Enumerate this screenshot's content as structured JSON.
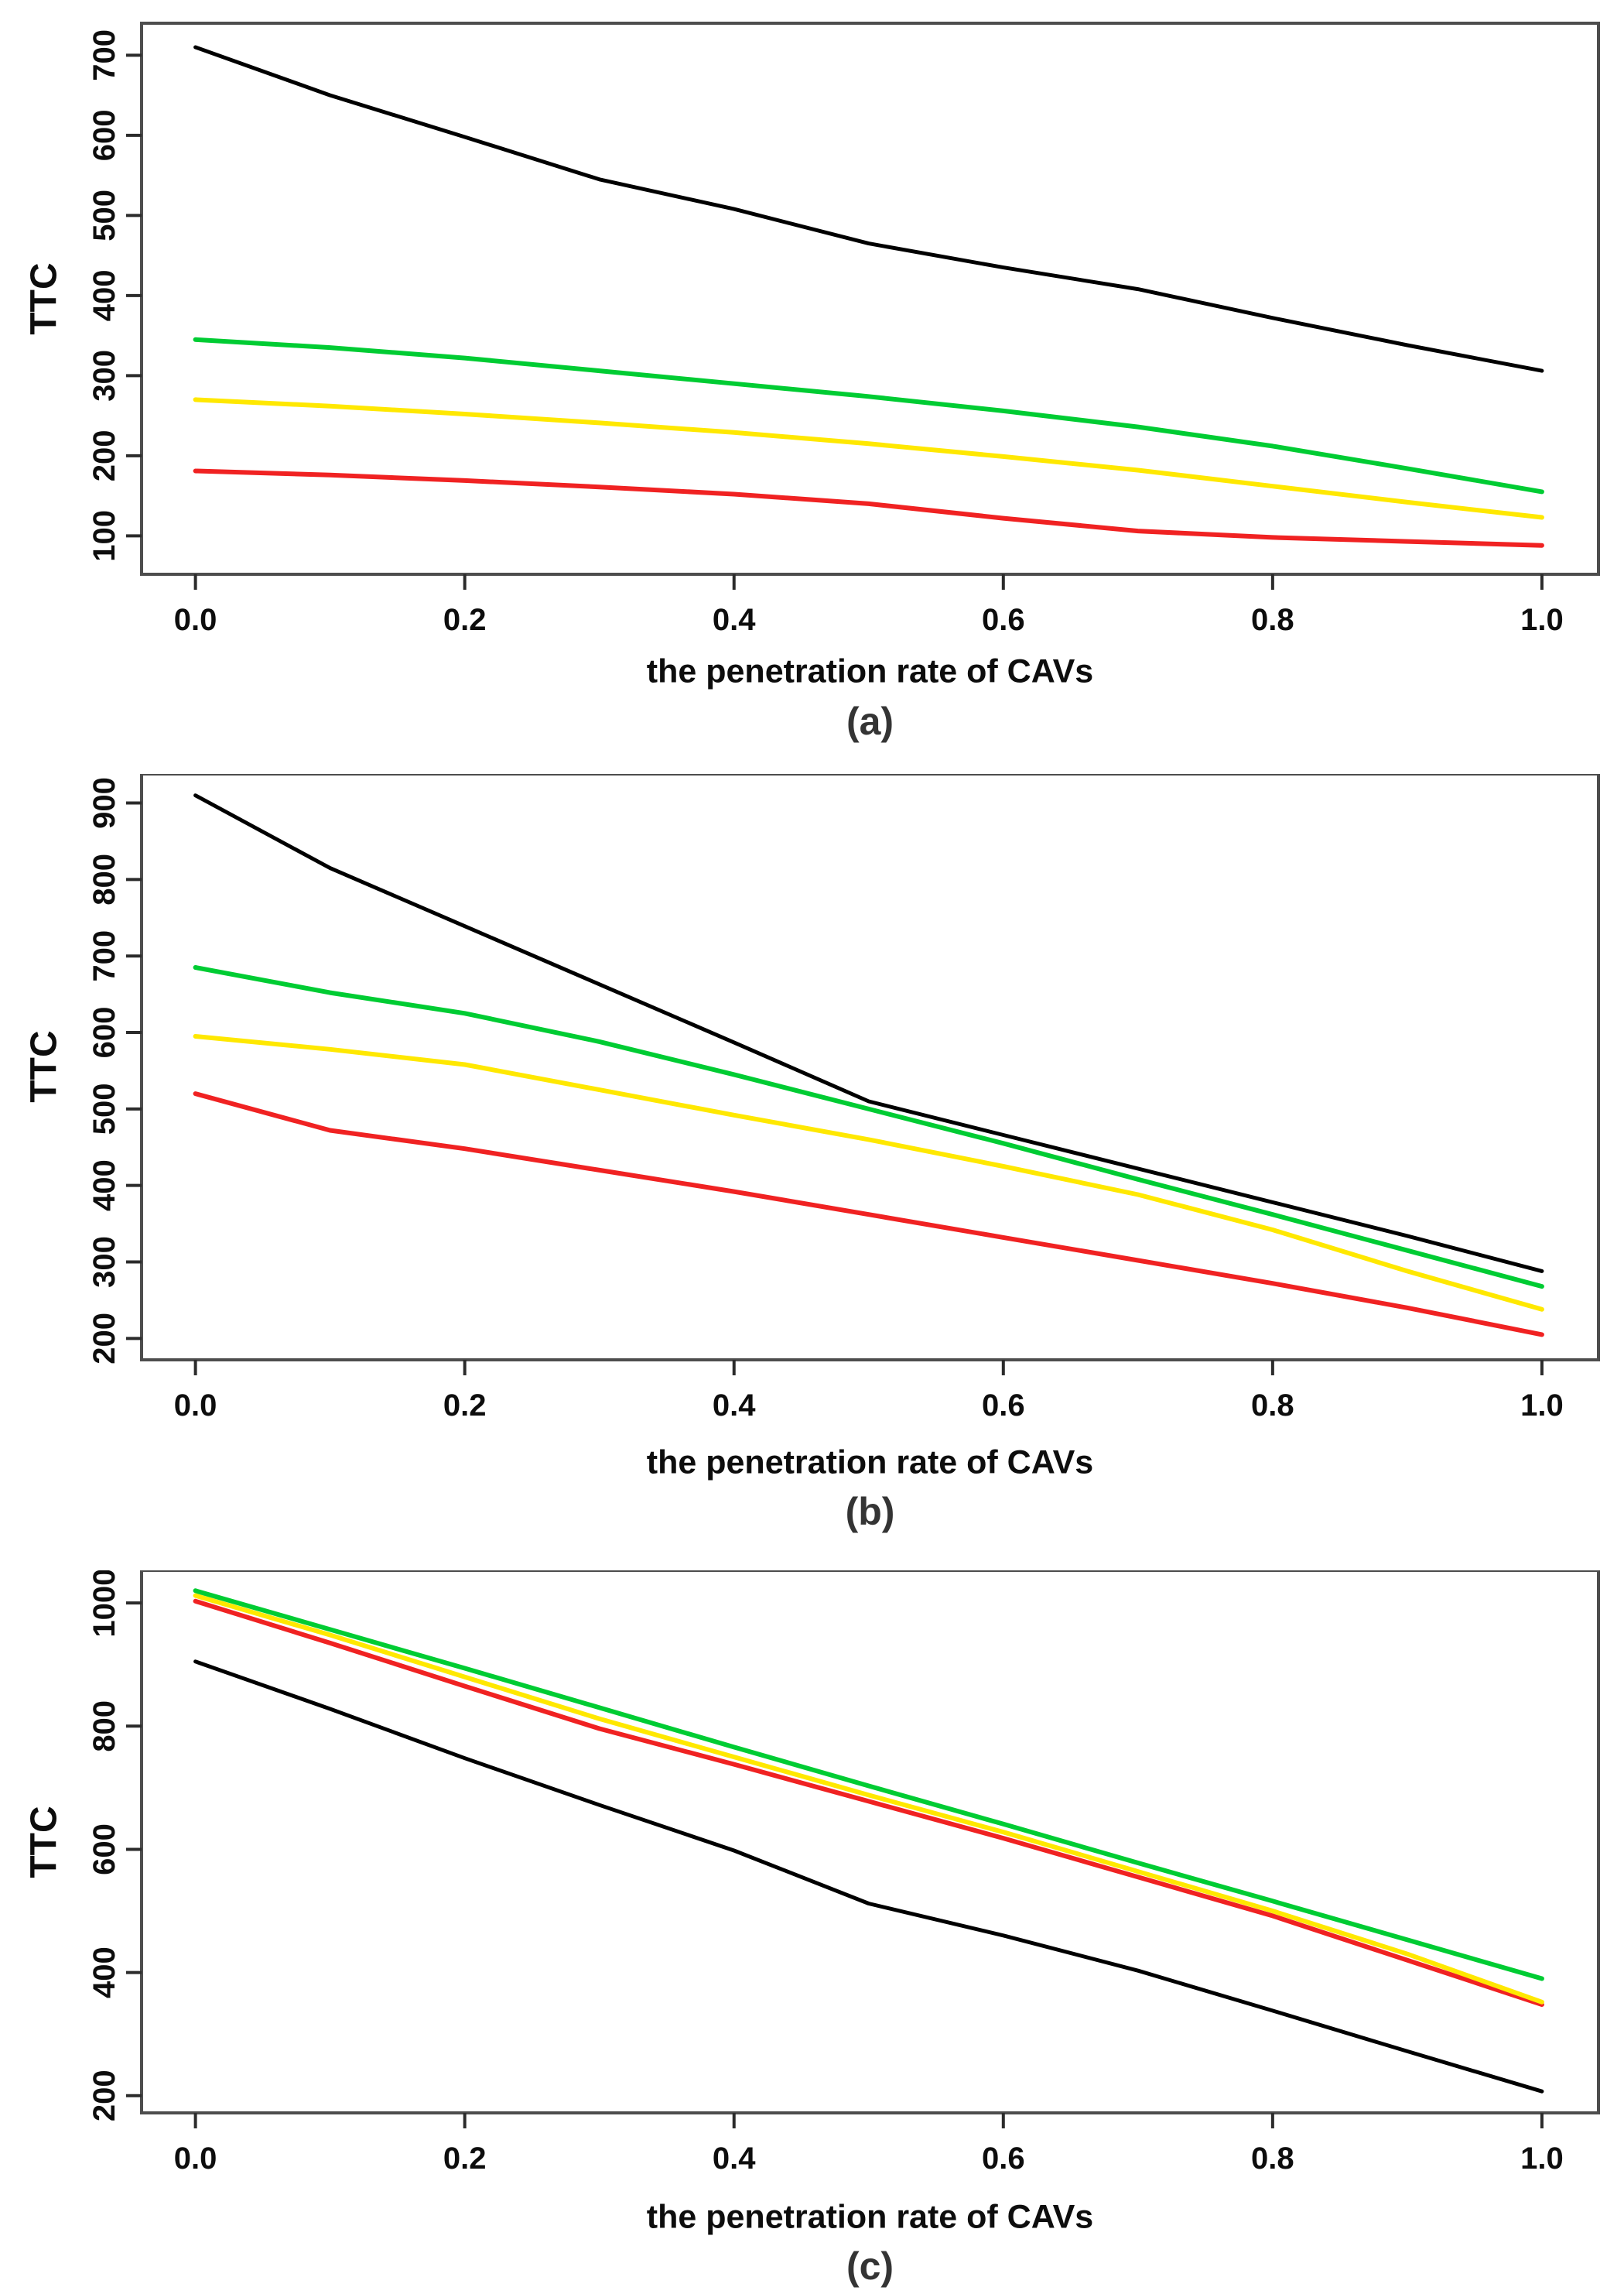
{
  "page": {
    "background": "#ffffff"
  },
  "axis_style": {
    "box_color": "#4d4d4d",
    "tick_color": "#2b2b2b",
    "label_color": "#0d0d0d"
  },
  "chart_data": [
    {
      "type": "line",
      "panel": "(a)",
      "xlabel": "the penetration rate of CAVs",
      "ylabel": "TTC",
      "x": [
        0,
        0.1,
        0.2,
        0.3,
        0.4,
        0.5,
        0.6,
        0.7,
        0.8,
        0.9,
        1.0
      ],
      "x_ticks": [
        0,
        0.2,
        0.4,
        0.6,
        0.8,
        1.0
      ],
      "x_tick_labels": [
        "0.0",
        "0.2",
        "0.4",
        "0.6",
        "0.8",
        "1.0"
      ],
      "y_ticks": [
        100,
        200,
        300,
        400,
        500,
        600,
        700
      ],
      "xlim": [
        -0.04,
        1.042
      ],
      "ylim": [
        52,
        740
      ],
      "grid": false,
      "legend": "none",
      "series": [
        {
          "name": "black",
          "color": "#000000",
          "width": 5,
          "values": [
            710,
            650,
            598,
            545,
            508,
            465,
            435,
            408,
            372,
            338,
            306
          ]
        },
        {
          "name": "green",
          "color": "#00cc33",
          "width": 6,
          "values": [
            345,
            335,
            322,
            306,
            290,
            274,
            256,
            236,
            212,
            184,
            155
          ]
        },
        {
          "name": "yellow",
          "color": "#ffe800",
          "width": 6,
          "values": [
            270,
            262,
            252,
            241,
            229,
            215,
            199,
            182,
            162,
            142,
            123
          ]
        },
        {
          "name": "red",
          "color": "#f02222",
          "width": 6,
          "values": [
            181,
            176,
            169,
            161,
            152,
            140,
            122,
            106,
            98,
            93,
            88
          ]
        }
      ]
    },
    {
      "type": "line",
      "panel": "(b)",
      "xlabel": "the penetration rate of CAVs",
      "ylabel": "TTC",
      "x": [
        0,
        0.1,
        0.2,
        0.3,
        0.4,
        0.5,
        0.6,
        0.7,
        0.8,
        0.9,
        1.0
      ],
      "x_ticks": [
        0,
        0.2,
        0.4,
        0.6,
        0.8,
        1.0
      ],
      "x_tick_labels": [
        "0.0",
        "0.2",
        "0.4",
        "0.6",
        "0.8",
        "1.0"
      ],
      "y_ticks": [
        200,
        300,
        400,
        500,
        600,
        700,
        800,
        900
      ],
      "xlim": [
        -0.04,
        1.042
      ],
      "ylim": [
        172,
        938
      ],
      "grid": false,
      "legend": "none",
      "series": [
        {
          "name": "black",
          "color": "#000000",
          "width": 5,
          "values": [
            910,
            815,
            739,
            663,
            587,
            510,
            466,
            422,
            378,
            334,
            288
          ]
        },
        {
          "name": "green",
          "color": "#00cc33",
          "width": 6,
          "values": [
            685,
            652,
            625,
            588,
            545,
            500,
            455,
            408,
            362,
            315,
            268
          ]
        },
        {
          "name": "yellow",
          "color": "#ffe800",
          "width": 6,
          "values": [
            595,
            578,
            558,
            525,
            492,
            460,
            425,
            388,
            342,
            288,
            238
          ]
        },
        {
          "name": "red",
          "color": "#f02222",
          "width": 6,
          "values": [
            520,
            472,
            448,
            420,
            392,
            362,
            332,
            302,
            272,
            240,
            205
          ]
        }
      ]
    },
    {
      "type": "line",
      "panel": "(c)",
      "xlabel": "the penetration rate of CAVs",
      "ylabel": "TTC",
      "x": [
        0,
        0.1,
        0.2,
        0.3,
        0.4,
        0.5,
        0.6,
        0.7,
        0.8,
        0.9,
        1.0
      ],
      "x_ticks": [
        0,
        0.2,
        0.4,
        0.6,
        0.8,
        1.0
      ],
      "x_tick_labels": [
        "0.0",
        "0.2",
        "0.4",
        "0.6",
        "0.8",
        "1.0"
      ],
      "y_ticks": [
        200,
        400,
        600,
        800,
        1000
      ],
      "xlim": [
        -0.04,
        1.042
      ],
      "ylim": [
        172,
        1053
      ],
      "grid": false,
      "legend": "none",
      "series": [
        {
          "name": "black",
          "color": "#000000",
          "width": 5,
          "values": [
            905,
            828,
            748,
            672,
            598,
            512,
            460,
            403,
            338,
            272,
            207
          ]
        },
        {
          "name": "red",
          "color": "#f02222",
          "width": 6,
          "values": [
            1003,
            935,
            865,
            796,
            738,
            678,
            618,
            555,
            492,
            420,
            348
          ]
        },
        {
          "name": "yellow",
          "color": "#ffe800",
          "width": 6,
          "values": [
            1012,
            948,
            880,
            812,
            750,
            688,
            628,
            564,
            500,
            430,
            352
          ]
        },
        {
          "name": "green",
          "color": "#00cc33",
          "width": 6,
          "values": [
            1020,
            957,
            894,
            830,
            766,
            703,
            641,
            578,
            516,
            453,
            390
          ]
        }
      ]
    }
  ]
}
